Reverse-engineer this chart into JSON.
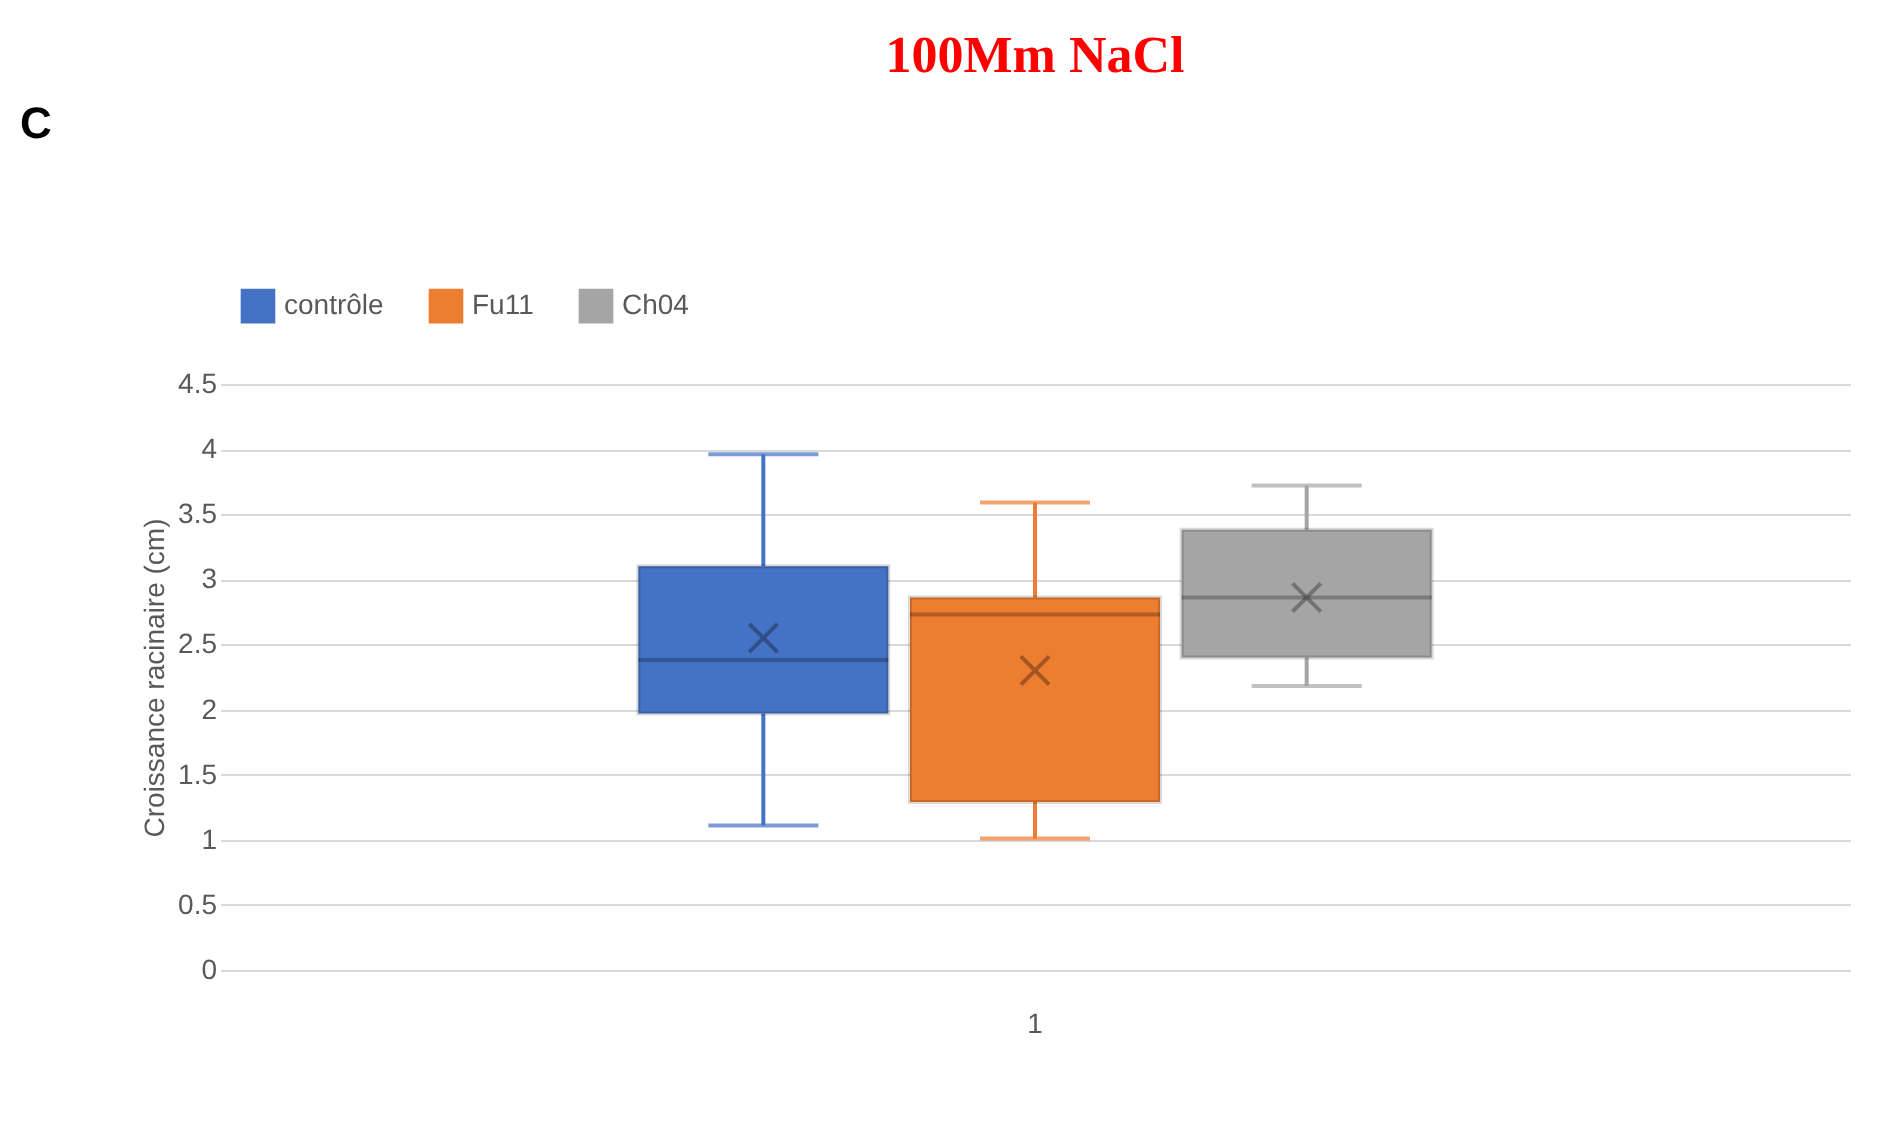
{
  "chart_data": {
    "type": "box",
    "title": "100Mm NaCl",
    "ylabel": "Croissance racinaire (cm)",
    "categories": [
      "1"
    ],
    "series": [
      {
        "name": "contrôle",
        "color": "#4472c4",
        "boxes": [
          {
            "low": 1.11,
            "q1": 1.97,
            "median": 2.38,
            "q3": 3.1,
            "high": 3.96,
            "mean": 2.55
          }
        ]
      },
      {
        "name": "Fu11",
        "color": "#ed7d31",
        "boxes": [
          {
            "low": 1.01,
            "q1": 1.29,
            "median": 2.73,
            "q3": 2.86,
            "high": 3.59,
            "mean": 2.3
          }
        ]
      },
      {
        "name": "Ch04",
        "color": "#a5a5a5",
        "boxes": [
          {
            "low": 2.18,
            "q1": 2.4,
            "median": 2.86,
            "q3": 3.38,
            "high": 3.72,
            "mean": 2.86
          }
        ]
      }
    ],
    "ylim": [
      0,
      4.5
    ],
    "yticks": [
      0,
      0.5,
      1,
      1.5,
      2,
      2.5,
      3,
      3.5,
      4,
      4.5
    ],
    "grid": "y",
    "legend": "top",
    "marker": "cross",
    "annotations": [
      "C"
    ]
  }
}
